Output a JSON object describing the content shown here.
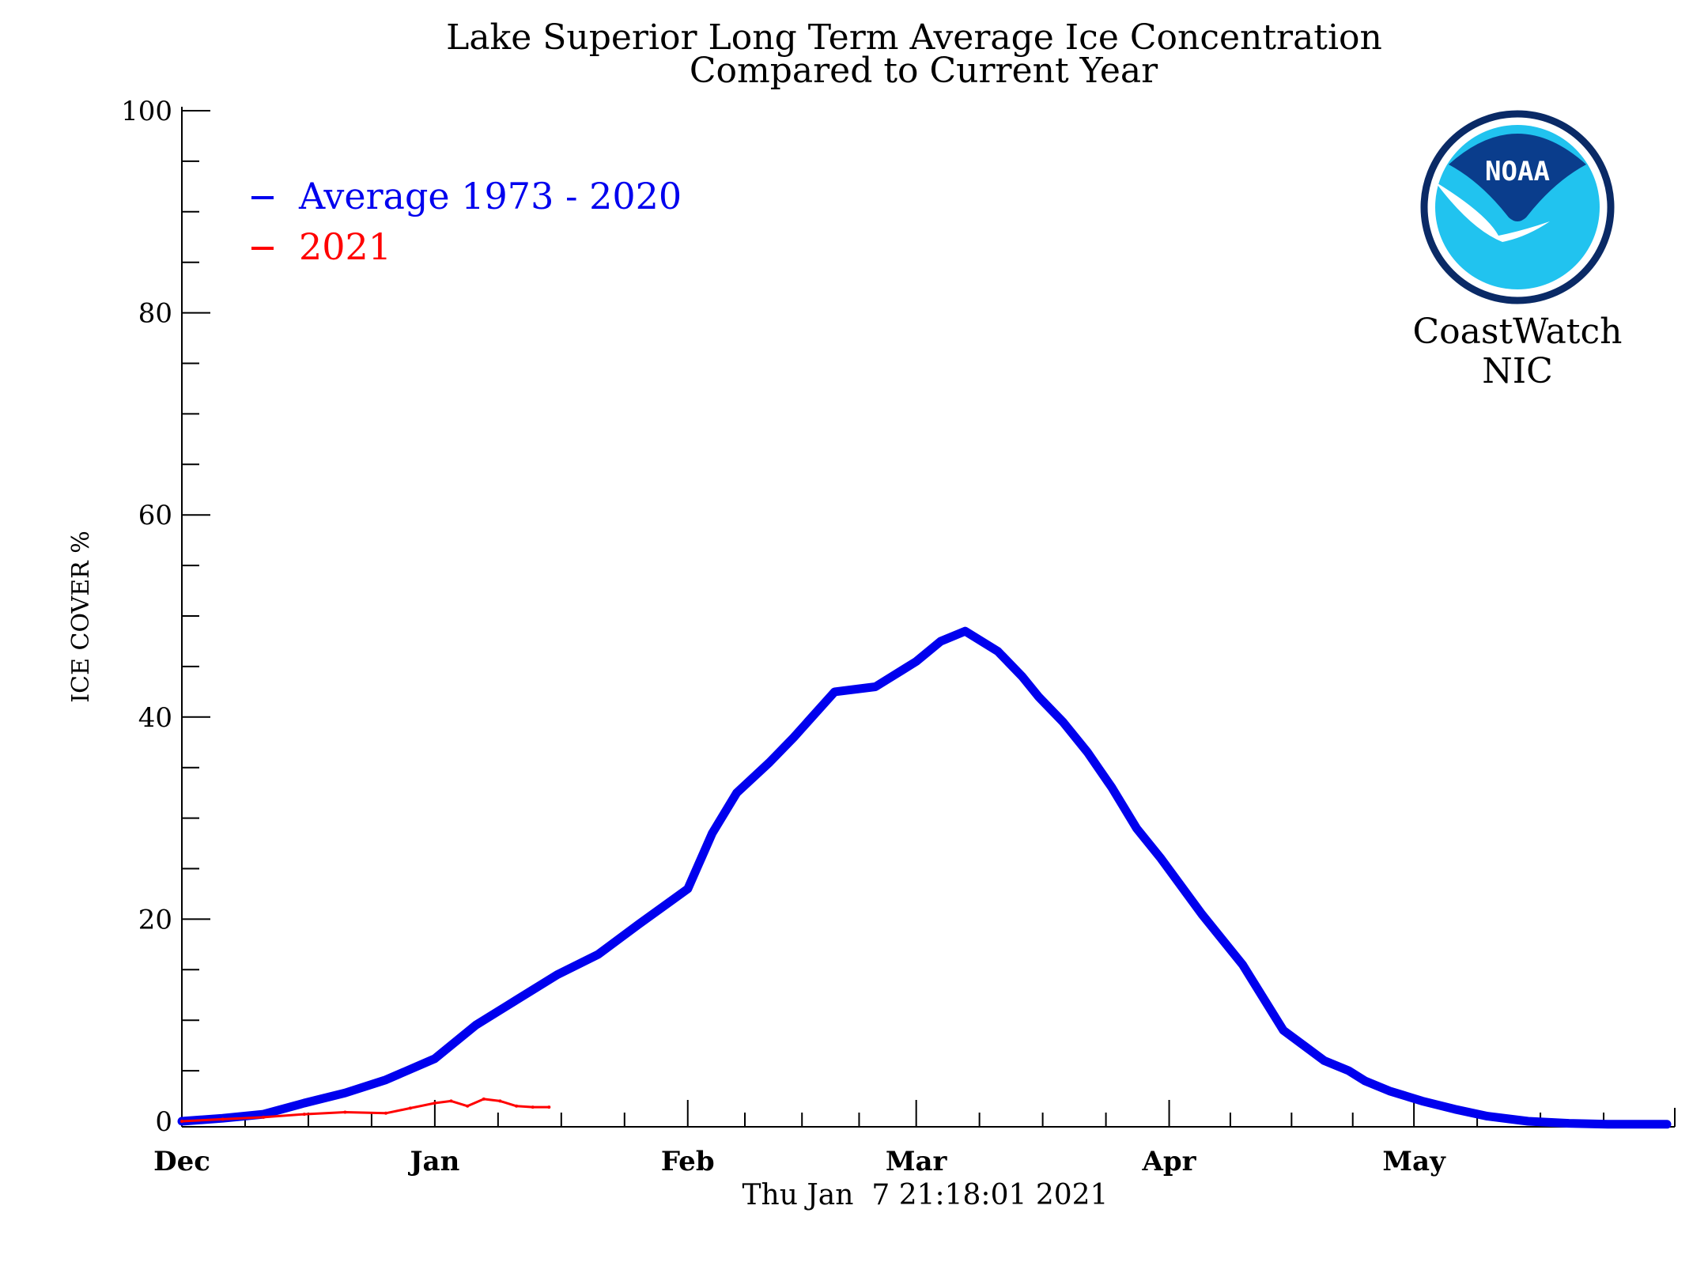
{
  "chart_data": {
    "type": "line",
    "title": "Lake Superior Long Term Average Ice Concentration",
    "subtitle": "Compared to Current Year",
    "ylabel": "ICE COVER %",
    "xlabel": "",
    "ylim": [
      0,
      100
    ],
    "y_ticks": [
      "0",
      "20",
      "40",
      "60",
      "80",
      "100"
    ],
    "x_ticks": [
      "Dec",
      "Jan",
      "Feb",
      "Mar",
      "Apr",
      "May"
    ],
    "timestamp": "Thu Jan  7 21:18:01 2021",
    "legend_position": "top-left",
    "grid": false,
    "series": [
      {
        "name": "Average 1973 - 2020",
        "color": "#0000ee",
        "x_days": [
          0,
          5,
          10,
          15,
          20,
          25,
          31,
          36,
          41,
          46,
          51,
          56,
          62,
          65,
          68,
          72,
          75,
          80,
          85,
          90,
          93,
          96,
          100,
          103,
          105,
          108,
          111,
          114,
          117,
          120,
          125,
          130,
          135,
          140,
          143,
          145,
          148,
          152,
          156,
          160,
          165,
          170,
          175,
          180,
          182
        ],
        "values": [
          0,
          0.3,
          0.7,
          1.8,
          2.8,
          4.1,
          6.2,
          9.5,
          12.0,
          14.5,
          16.5,
          19.5,
          23,
          28.5,
          32.5,
          35.5,
          38,
          42.5,
          43,
          45.5,
          47.5,
          48.5,
          46.5,
          44,
          42,
          39.5,
          36.5,
          33,
          29,
          26,
          20.5,
          15.5,
          9,
          6,
          5,
          4,
          3,
          2,
          1.2,
          0.5,
          0,
          -0.2,
          -0.3,
          -0.3,
          -0.3
        ]
      },
      {
        "name": "2021",
        "color": "#ff0000",
        "x_days": [
          0,
          5,
          10,
          15,
          20,
          25,
          28,
          31,
          33,
          35,
          37,
          39,
          41,
          43,
          45
        ],
        "values": [
          0,
          0.2,
          0.4,
          0.7,
          0.9,
          0.8,
          1.3,
          1.8,
          2.0,
          1.5,
          2.2,
          2.0,
          1.5,
          1.4,
          1.4
        ]
      }
    ]
  },
  "logo": {
    "badge": "NOAA",
    "line1": "CoastWatch",
    "line2": "NIC",
    "colors": {
      "navy": "#0a3d8c",
      "cyan": "#21c3ef",
      "ring": "#0a2a66"
    }
  }
}
